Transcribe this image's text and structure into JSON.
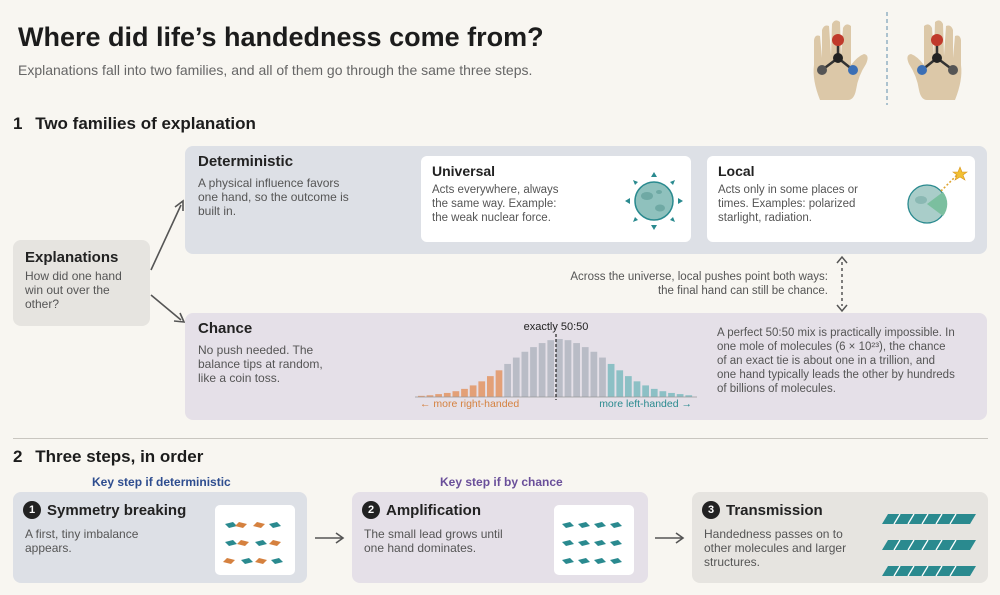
{
  "header": {
    "title": "Where did life’s handedness come from?",
    "subtitle": "Explanations fall into two families, and all of them go through the same three steps."
  },
  "section1": {
    "number": "1",
    "title": "Two families of explanation",
    "explanations": {
      "title": "Explanations",
      "text": "How did one hand win out over the other?"
    },
    "deterministic": {
      "title": "Deterministic",
      "text": "A physical influence favors one hand, so the outcome is built in.",
      "universal": {
        "title": "Universal",
        "text": "Acts everywhere, always the same way. Example: the weak nuclear force."
      },
      "local": {
        "title": "Local",
        "text": "Acts only in some places or times. Examples: polarized starlight, radiation."
      }
    },
    "connector_note": "Across the universe, local pushes point both ways: the final hand can still be chance.",
    "chance": {
      "title": "Chance",
      "text": "No push needed. The balance tips at random, like a coin toss.",
      "note": "A perfect 50:50 mix is practically impossible. In one mole of molecules (6 × 10²³), the chance of an exact tie is about one in a trillion, and one hand typically leads the other by hundreds of billions of molecules."
    }
  },
  "chart_data": {
    "type": "bar",
    "annotation": "exactly 50:50",
    "left_label": "← more right-handed",
    "right_label": "more left-handed →",
    "values": [
      0.02,
      0.03,
      0.05,
      0.07,
      0.1,
      0.14,
      0.2,
      0.27,
      0.36,
      0.46,
      0.57,
      0.68,
      0.78,
      0.86,
      0.93,
      0.98,
      1.0,
      0.98,
      0.93,
      0.86,
      0.78,
      0.68,
      0.57,
      0.46,
      0.36,
      0.27,
      0.2,
      0.14,
      0.1,
      0.07,
      0.05,
      0.03
    ],
    "colors": {
      "left": "#e3a077",
      "center": "#b9bcc6",
      "right": "#8cc0c5"
    }
  },
  "section2": {
    "number": "2",
    "title": "Three steps, in order",
    "key_deterministic": "Key step if deterministic",
    "key_chance": "Key step if by chance",
    "steps": [
      {
        "num": "1",
        "title": "Symmetry breaking",
        "text": "A first, tiny imbalance appears."
      },
      {
        "num": "2",
        "title": "Amplification",
        "text": "The small lead grows until one hand dominates."
      },
      {
        "num": "3",
        "title": "Transmission",
        "text": "Handedness passes on to other molecules and larger structures."
      }
    ]
  },
  "colors": {
    "deterministic_bg": "#dde0e6",
    "chance_bg": "#e5e0e8",
    "neutral_bg": "#e6e4e0",
    "teal": "#2a8a8f",
    "orange": "#d5813f",
    "blue_label": "#2e4d8f",
    "purple_label": "#6a4f9a"
  }
}
